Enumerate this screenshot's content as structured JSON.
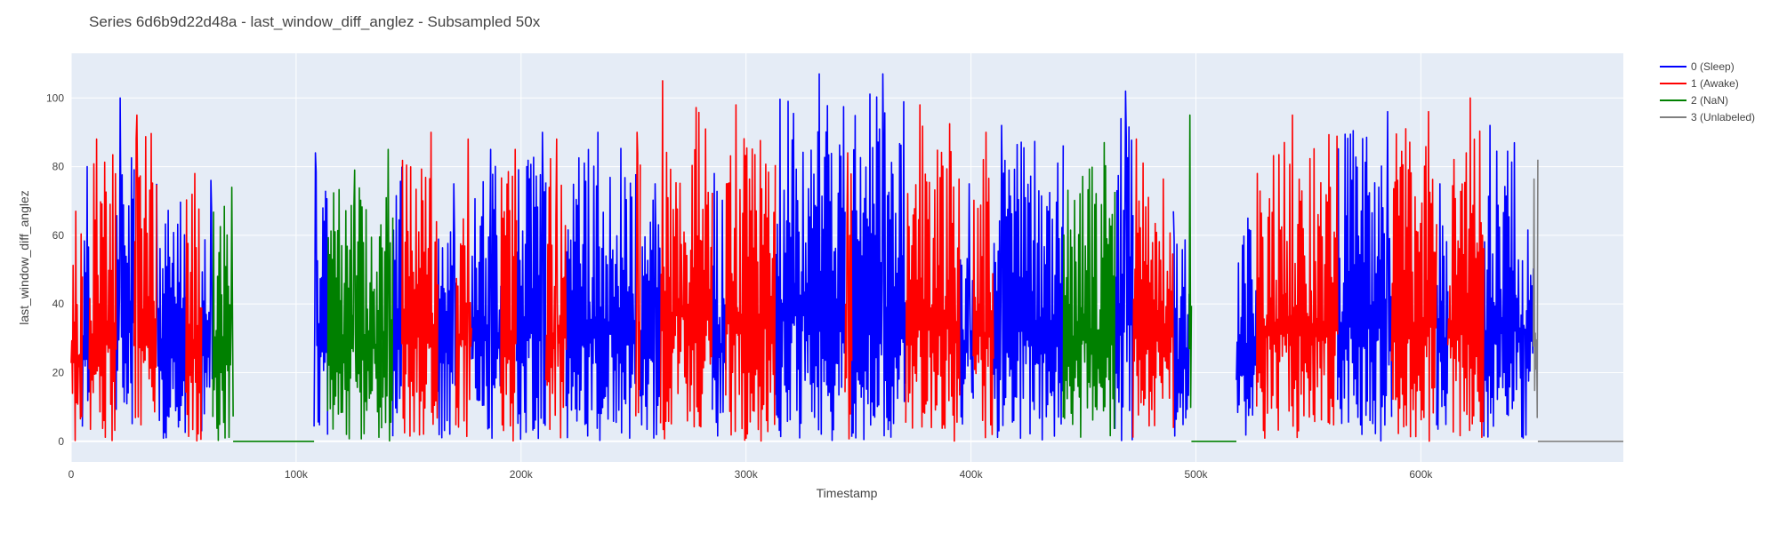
{
  "chart_data": {
    "type": "line",
    "title": "Series 6d6b9d22d48a - last_window_diff_anglez - Subsampled 50x",
    "xlabel": "Timestamp",
    "ylabel": "last_window_diff_anglez",
    "xlim": [
      0,
      690000
    ],
    "ylim": [
      -6,
      113
    ],
    "xticks": [
      0,
      100000,
      200000,
      300000,
      400000,
      500000,
      600000
    ],
    "xtick_labels": [
      "0",
      "100k",
      "200k",
      "300k",
      "400k",
      "500k",
      "600k"
    ],
    "yticks": [
      0,
      20,
      40,
      60,
      80,
      100
    ],
    "ytick_labels": [
      "0",
      "20",
      "40",
      "60",
      "80",
      "100"
    ],
    "grid": true,
    "plot_background": "#e5ecf6",
    "legend_position": "top-right",
    "series": [
      {
        "name": "0 (Sleep)",
        "color": "#0000ff",
        "segments": [
          [
            5000,
            8000,
            80
          ],
          [
            20000,
            28000,
            100
          ],
          [
            38000,
            51000,
            75
          ],
          [
            58000,
            63000,
            76
          ],
          [
            108000,
            114000,
            84
          ],
          [
            143000,
            147000,
            80
          ],
          [
            163000,
            171000,
            75
          ],
          [
            178000,
            191000,
            85
          ],
          [
            198000,
            211000,
            90
          ],
          [
            220000,
            251000,
            90
          ],
          [
            253000,
            262000,
            75
          ],
          [
            285000,
            291000,
            78
          ],
          [
            313000,
            344000,
            107
          ],
          [
            347000,
            371000,
            107
          ],
          [
            395000,
            401000,
            75
          ],
          [
            410000,
            441000,
            92
          ],
          [
            464000,
            472000,
            102
          ],
          [
            490000,
            497000,
            67
          ],
          [
            518000,
            527000,
            65
          ],
          [
            563000,
            587000,
            96
          ],
          [
            607000,
            612000,
            75
          ],
          [
            628000,
            650000,
            92
          ]
        ]
      },
      {
        "name": "1 (Awake)",
        "color": "#ff0000",
        "segments": [
          [
            0,
            5000,
            67
          ],
          [
            8000,
            20000,
            88
          ],
          [
            28000,
            38000,
            95
          ],
          [
            51000,
            58000,
            78
          ],
          [
            147000,
            163000,
            90
          ],
          [
            171000,
            178000,
            88
          ],
          [
            191000,
            198000,
            85
          ],
          [
            211000,
            220000,
            88
          ],
          [
            251000,
            253000,
            90
          ],
          [
            262000,
            285000,
            105
          ],
          [
            291000,
            313000,
            98
          ],
          [
            344000,
            347000,
            84
          ],
          [
            371000,
            395000,
            98
          ],
          [
            401000,
            410000,
            90
          ],
          [
            472000,
            490000,
            88
          ],
          [
            527000,
            563000,
            95
          ],
          [
            587000,
            607000,
            96
          ],
          [
            612000,
            628000,
            100
          ]
        ]
      },
      {
        "name": "2 (NaN)",
        "color": "#008000",
        "segments": [
          [
            63000,
            72000,
            74
          ],
          [
            72000,
            108000,
            0
          ],
          [
            114000,
            138000,
            79
          ],
          [
            138000,
            143000,
            85
          ],
          [
            441000,
            464000,
            87
          ],
          [
            497000,
            498000,
            95
          ],
          [
            498000,
            518000,
            0
          ]
        ]
      },
      {
        "name": "3 (Unlabeled)",
        "color": "#808080",
        "segments": [
          [
            650000,
            652000,
            82
          ],
          [
            652000,
            690000,
            0
          ]
        ]
      }
    ]
  }
}
